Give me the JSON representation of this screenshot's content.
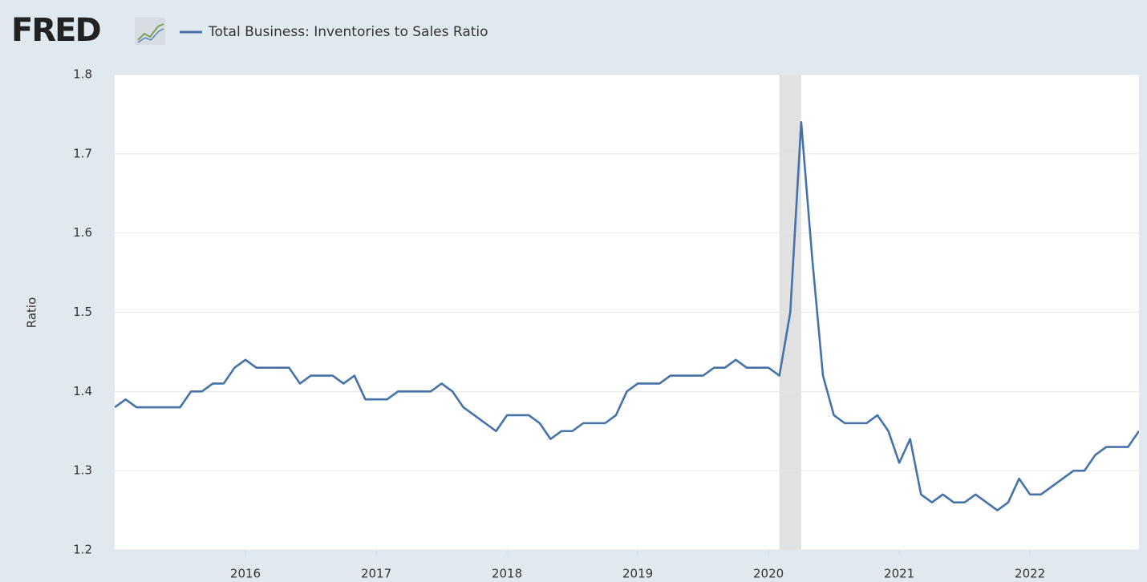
{
  "brand": "FRED",
  "chart_data": {
    "type": "line",
    "y_label": "Ratio",
    "x": [
      "2015-01",
      "2015-02",
      "2015-03",
      "2015-04",
      "2015-05",
      "2015-06",
      "2015-07",
      "2015-08",
      "2015-09",
      "2015-10",
      "2015-11",
      "2015-12",
      "2016-01",
      "2016-02",
      "2016-03",
      "2016-04",
      "2016-05",
      "2016-06",
      "2016-07",
      "2016-08",
      "2016-09",
      "2016-10",
      "2016-11",
      "2016-12",
      "2017-01",
      "2017-02",
      "2017-03",
      "2017-04",
      "2017-05",
      "2017-06",
      "2017-07",
      "2017-08",
      "2017-09",
      "2017-10",
      "2017-11",
      "2017-12",
      "2018-01",
      "2018-02",
      "2018-03",
      "2018-04",
      "2018-05",
      "2018-06",
      "2018-07",
      "2018-08",
      "2018-09",
      "2018-10",
      "2018-11",
      "2018-12",
      "2019-01",
      "2019-02",
      "2019-03",
      "2019-04",
      "2019-05",
      "2019-06",
      "2019-07",
      "2019-08",
      "2019-09",
      "2019-10",
      "2019-11",
      "2019-12",
      "2020-01",
      "2020-02",
      "2020-03",
      "2020-04",
      "2020-05",
      "2020-06",
      "2020-07",
      "2020-08",
      "2020-09",
      "2020-10",
      "2020-11",
      "2020-12",
      "2021-01",
      "2021-02",
      "2021-03",
      "2021-04",
      "2021-05",
      "2021-06",
      "2021-07",
      "2021-08",
      "2021-09",
      "2021-10",
      "2021-11",
      "2021-12",
      "2022-01",
      "2022-02",
      "2022-03",
      "2022-04",
      "2022-05",
      "2022-06",
      "2022-07",
      "2022-08",
      "2022-09",
      "2022-10",
      "2022-11"
    ],
    "series": [
      {
        "name": "Total Business: Inventories to Sales Ratio",
        "color": "#4572a7",
        "values": [
          1.38,
          1.39,
          1.38,
          1.38,
          1.38,
          1.38,
          1.38,
          1.4,
          1.4,
          1.41,
          1.41,
          1.43,
          1.44,
          1.43,
          1.43,
          1.43,
          1.43,
          1.41,
          1.42,
          1.42,
          1.42,
          1.41,
          1.42,
          1.39,
          1.39,
          1.39,
          1.4,
          1.4,
          1.4,
          1.4,
          1.41,
          1.4,
          1.38,
          1.37,
          1.36,
          1.35,
          1.37,
          1.37,
          1.37,
          1.36,
          1.34,
          1.35,
          1.35,
          1.36,
          1.36,
          1.36,
          1.37,
          1.4,
          1.41,
          1.41,
          1.41,
          1.42,
          1.42,
          1.42,
          1.42,
          1.43,
          1.43,
          1.44,
          1.43,
          1.43,
          1.43,
          1.42,
          1.5,
          1.74,
          1.57,
          1.42,
          1.37,
          1.36,
          1.36,
          1.36,
          1.37,
          1.35,
          1.31,
          1.34,
          1.27,
          1.26,
          1.27,
          1.26,
          1.26,
          1.27,
          1.26,
          1.25,
          1.26,
          1.29,
          1.27,
          1.27,
          1.28,
          1.29,
          1.3,
          1.3,
          1.32,
          1.33,
          1.33,
          1.33,
          1.35
        ]
      }
    ],
    "recessions": [
      {
        "start": "2020-02",
        "end": "2020-04"
      }
    ],
    "xlim": [
      "2015-01",
      "2022-11"
    ],
    "xticks": [
      2016,
      2017,
      2018,
      2019,
      2020,
      2021,
      2022
    ],
    "ylim": [
      1.2,
      1.8
    ],
    "yticks": [
      1.2,
      1.3,
      1.4,
      1.5,
      1.6,
      1.7,
      1.8
    ],
    "grid": true
  }
}
